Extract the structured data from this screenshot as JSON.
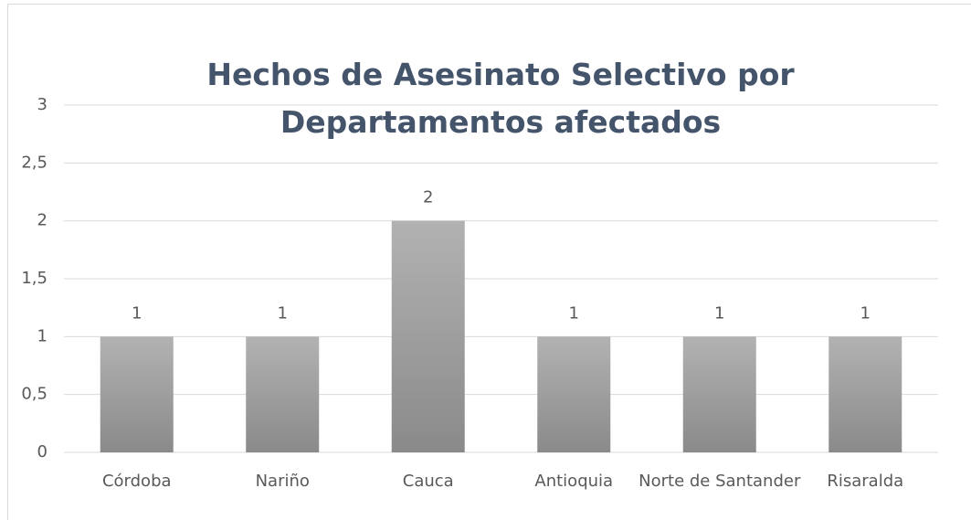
{
  "chart_data": {
    "type": "bar",
    "title": "Hechos de Asesinato Selectivo por Departamentos afectados",
    "categories": [
      "Córdoba",
      "Nariño",
      "Cauca",
      "Antioquia",
      "Norte de Santander",
      "Risaralda"
    ],
    "values": [
      1,
      1,
      2,
      1,
      1,
      1
    ],
    "color": "#a0a0a0",
    "ylim": [
      0,
      3
    ],
    "yticks": [
      0,
      {
        "value": 0.5,
        "label": "0,5"
      },
      1,
      {
        "value": 1.5,
        "label": "1,5"
      },
      2,
      {
        "value": 2.5,
        "label": "2,5"
      },
      3
    ],
    "grid": true
  }
}
